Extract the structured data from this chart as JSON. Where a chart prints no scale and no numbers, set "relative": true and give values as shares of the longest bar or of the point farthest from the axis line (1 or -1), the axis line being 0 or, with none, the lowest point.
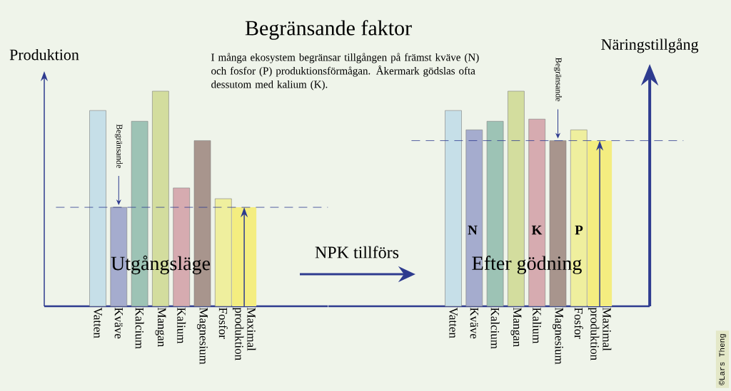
{
  "chart_data": [
    {
      "type": "bar",
      "title": "Begränsande faktor",
      "subtitle": "I många ekosystem begränsar tillgången på främst kväve (N) och fosfor (P) produktionsförmågan. Åkermark gödslas ofta dessutom med kalium (K).",
      "ylabel": "Produktion",
      "relative": true,
      "categories": [
        "Vatten",
        "Kväve",
        "Kalcium",
        "Mangan",
        "Kalium",
        "Magnesium",
        "Fosfor",
        "Maximal produktion"
      ],
      "values": [
        0.91,
        0.46,
        0.86,
        1,
        0.55,
        0.77,
        0.5,
        0.46
      ],
      "colors": [
        "#c6dfe8",
        "#a5acce",
        "#9dc3b5",
        "#d3dd9e",
        "#d6abb0",
        "#a8958d",
        "#efef9e",
        "#f4ed80"
      ],
      "ref_lines": [
        {
          "axis": "y",
          "value": 0.46,
          "line_style": "dashed",
          "color": "#2e3b8f"
        }
      ],
      "annotations": [
        {
          "text": "Begränsande",
          "x": "Kväve",
          "y": 0.46
        },
        "Utgångsläge",
        "NPK tillförs"
      ]
    },
    {
      "type": "bar",
      "ylabel": "Näringstillgång",
      "relative": true,
      "categories": [
        "Vatten",
        "Kväve",
        "Kalcium",
        "Mangan",
        "Kalium",
        "Magnesium",
        "Fosfor",
        "Maximal produktion"
      ],
      "values": [
        0.91,
        0.82,
        0.86,
        1,
        0.87,
        0.77,
        0.82,
        0.77
      ],
      "colors": [
        "#c6dfe8",
        "#a5acce",
        "#9dc3b5",
        "#d3dd9e",
        "#d6abb0",
        "#a8958d",
        "#efef9e",
        "#f4ed80"
      ],
      "ref_lines": [
        {
          "axis": "y",
          "value": 0.77,
          "line_style": "dashed",
          "color": "#2e3b8f"
        }
      ],
      "annotations": [
        {
          "text": "Begränsande",
          "x": "Magnesium",
          "y": 0.77
        },
        "N",
        "K",
        "P",
        "Efter gödning",
        "©Lars Theng"
      ]
    }
  ]
}
